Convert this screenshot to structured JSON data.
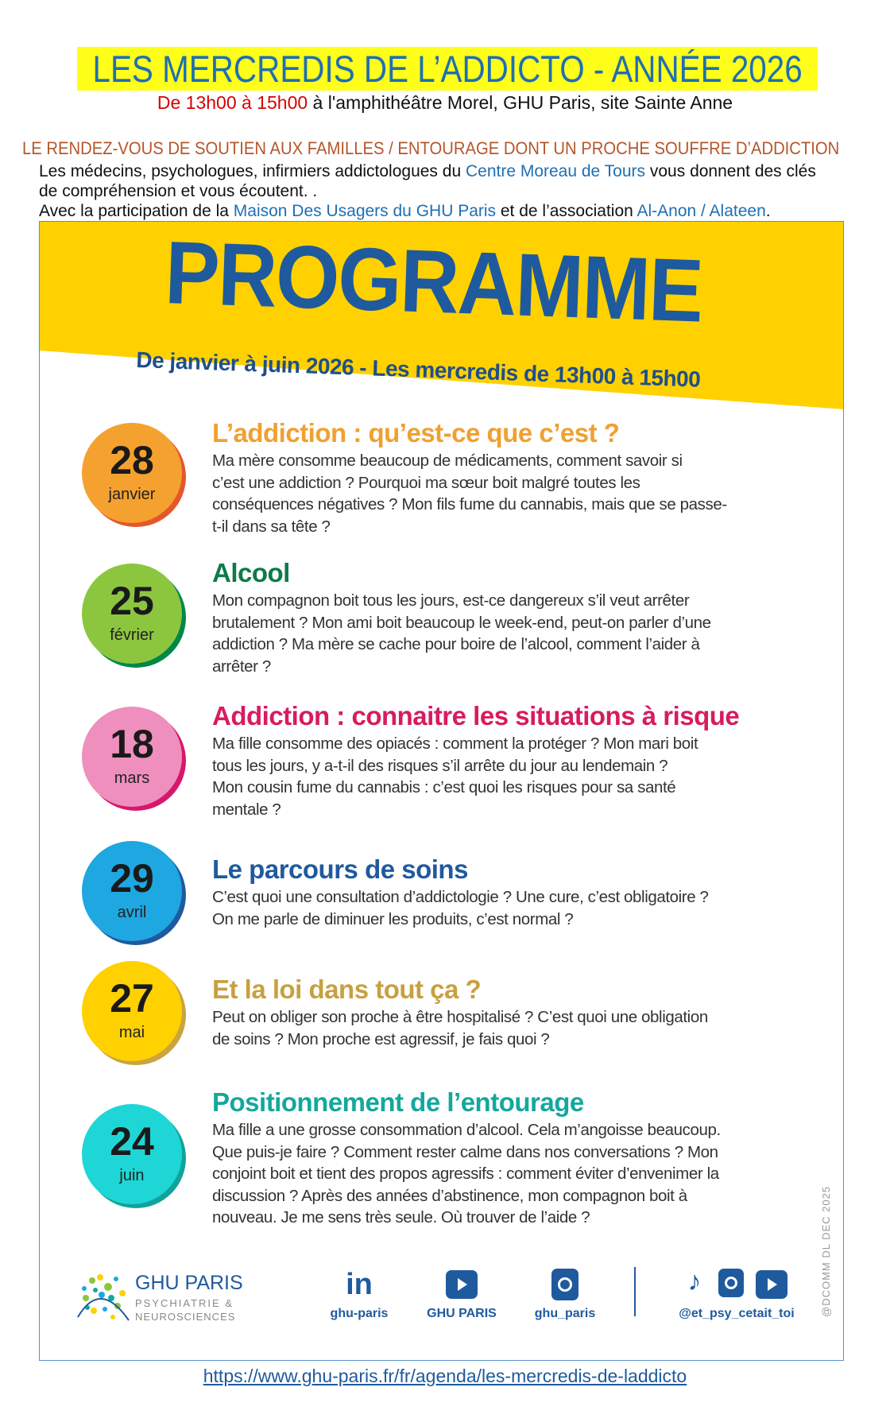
{
  "header": {
    "title": "LES MERCREDIS DE L’ADDICTO  -  ANNÉE 2026",
    "time": "De 13h00 à 15h00",
    "location": " à l'amphithéâtre Morel, GHU Paris, site Sainte Anne",
    "tagline": "LE RENDEZ-VOUS DE SOUTIEN AUX FAMILLES / ENTOURAGE DONT UN PROCHE SOUFFRE D’ADDICTION",
    "intro_1a": "Les médecins, psychologues, infirmiers addictologues du ",
    "intro_1_link": "Centre Moreau de Tours",
    "intro_1b": " vous donnent des clés",
    "intro_2": "de compréhension et vous écoutent. .",
    "intro_3a": "Avec la participation de la ",
    "intro_3_link1": "Maison Des Usagers du GHU Paris",
    "intro_3b": " et de l’association ",
    "intro_3_link2": "Al-Anon / Alateen",
    "intro_3c": "."
  },
  "programme": {
    "title": "PROGRAMME",
    "subtitle": "De janvier à juin 2026 - Les mercredis de 13h00 à 15h00",
    "banner_color": "#ffd100",
    "sessions": [
      {
        "day": "28",
        "month": "janvier",
        "title": "L’addiction : qu’est-ce que c’est ?",
        "color": "#f0a030",
        "circle": "#f5a12f",
        "shadow": "#e4572e",
        "lines": [
          "Ma mère consomme beaucoup de médicaments, comment savoir si",
          "c’est une addiction ? Pourquoi ma sœur boit malgré toutes les",
          "conséquences négatives ? Mon fils fume du cannabis, mais que se passe-",
          "t-il dans sa tête ?"
        ]
      },
      {
        "day": "25",
        "month": "février",
        "title": "Alcool",
        "color": "#0d7a4a",
        "circle": "#8cc63f",
        "shadow": "#00874a",
        "lines": [
          "Mon compagnon boit tous les jours, est-ce dangereux s’il veut arrêter",
          "brutalement ? Mon ami boit beaucoup le week-end, peut-on parler d’une",
          "addiction ? Ma mère se cache pour boire de l’alcool, comment l’aider à",
          "arrêter ?"
        ]
      },
      {
        "day": "18",
        "month": "mars",
        "title": "Addiction : connaitre les situations à risque",
        "color": "#d81b60",
        "circle": "#ee8fbd",
        "shadow": "#d6186b",
        "lines": [
          "Ma fille consomme des opiacés : comment la protéger ? Mon mari boit",
          "tous les jours, y a-t-il des risques s’il arrête du jour au lendemain ?",
          "Mon cousin fume du cannabis : c’est quoi les risques pour sa santé",
          "mentale ?"
        ]
      },
      {
        "day": "29",
        "month": "avril",
        "title": "Le parcours de soins",
        "color": "#1f5a9e",
        "circle": "#1ea7e1",
        "shadow": "#1f5a9e",
        "lines": [
          "C’est quoi une consultation d’addictologie ? Une cure, c’est obligatoire ?",
          "On me parle de diminuer les produits, c’est normal ?"
        ]
      },
      {
        "day": "27",
        "month": "mai",
        "title": "Et la loi dans tout ça ?",
        "color": "#c8a040",
        "circle": "#ffd100",
        "shadow": "#c9a43f",
        "lines": [
          "Peut on obliger son proche à être hospitalisé ? C’est quoi une obligation",
          "de soins ? Mon proche est agressif, je fais quoi ?"
        ]
      },
      {
        "day": "24",
        "month": "juin",
        "title": "Positionnement de l’entourage",
        "color": "#13a89e",
        "circle": "#1ed6d6",
        "shadow": "#10a39c",
        "lines": [
          "Ma fille a une grosse consommation d’alcool. Cela m’angoisse beaucoup.",
          "Que puis-je faire ? Comment rester calme dans nos conversations ? Mon",
          "conjoint boit et tient des propos agressifs : comment éviter d’envenimer la",
          "discussion ? Après des années d’abstinence, mon compagnon boit à",
          "nouveau. Je me sens très seule. Où trouver de l’aide ?"
        ]
      }
    ]
  },
  "footer": {
    "logo_name": "GHU PARIS",
    "logo_sub1": "PSYCHIATRIE &",
    "logo_sub2": "NEUROSCIENCES",
    "linkedin": "ghu-paris",
    "youtube": "GHU PARIS",
    "instagram": "ghu_paris",
    "psy_account": "@et_psy_cetait_toi",
    "watermark": "@DCOMM DL DEC 2025",
    "icons": [
      "linkedin-icon",
      "youtube-icon",
      "instagram-icon",
      "tiktok-icon",
      "instagram-icon",
      "youtube-icon"
    ]
  },
  "url": "https://www.ghu-paris.fr/fr/agenda/les-mercredis-de-laddicto"
}
